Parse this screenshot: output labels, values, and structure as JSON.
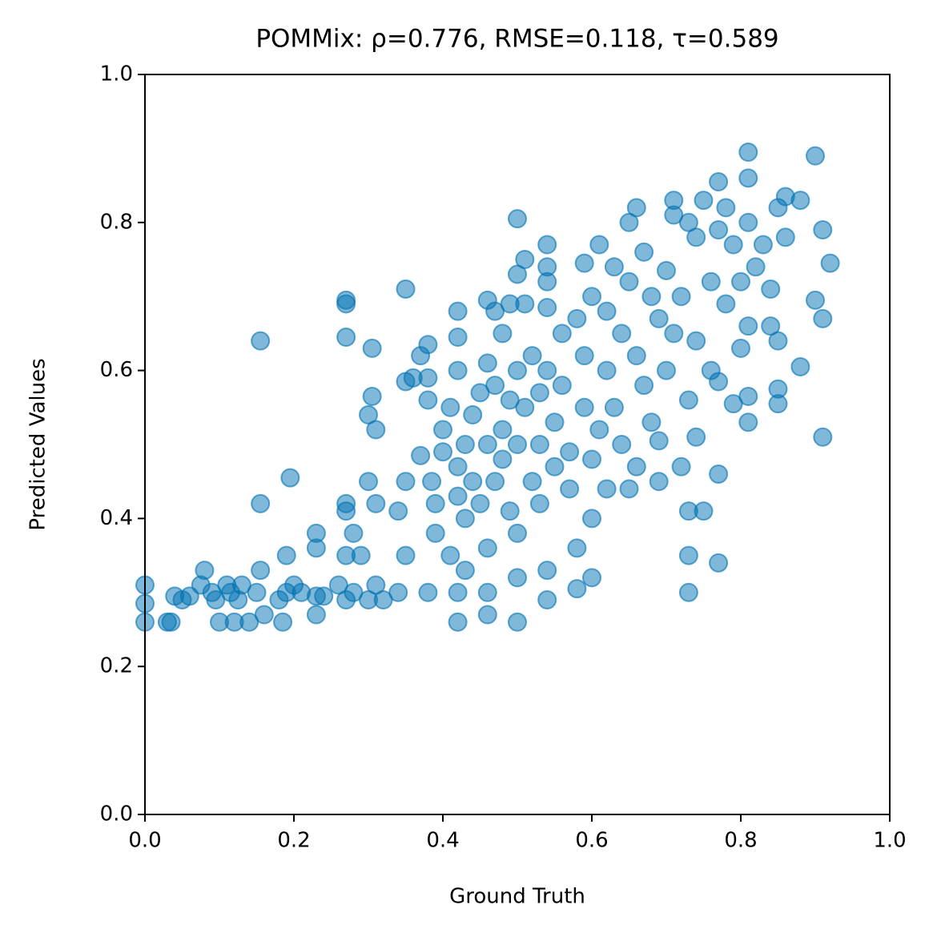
{
  "chart_data": {
    "type": "scatter",
    "title": "POMMix: ρ=0.776, RMSE=0.118, τ=0.589",
    "x_label": "Ground Truth",
    "y_label": "Predicted Values",
    "xlim": [
      0,
      1
    ],
    "ylim": [
      0,
      1
    ],
    "xticks": [
      {
        "value": 0,
        "label": "0.0"
      },
      0.2,
      0.4,
      0.6,
      0.8,
      {
        "value": 1,
        "label": "1.0"
      }
    ],
    "yticks": [
      {
        "value": 0,
        "label": "0.0"
      },
      0.2,
      0.4,
      0.6,
      0.8,
      {
        "value": 1,
        "label": "1.0"
      }
    ],
    "color": "#0072b2",
    "x": [
      0.0,
      0.0,
      0.0,
      0.03,
      0.035,
      0.04,
      0.05,
      0.06,
      0.075,
      0.08,
      0.09,
      0.095,
      0.1,
      0.11,
      0.115,
      0.12,
      0.125,
      0.13,
      0.14,
      0.15,
      0.155,
      0.16,
      0.18,
      0.185,
      0.19,
      0.2,
      0.21,
      0.23,
      0.23,
      0.24,
      0.26,
      0.27,
      0.28,
      0.3,
      0.31,
      0.32,
      0.155,
      0.155,
      0.19,
      0.195,
      0.23,
      0.23,
      0.27,
      0.27,
      0.27,
      0.27,
      0.27,
      0.27,
      0.28,
      0.3,
      0.305,
      0.305,
      0.31,
      0.3,
      0.31,
      0.29,
      0.35,
      0.35,
      0.36,
      0.34,
      0.35,
      0.35,
      0.34,
      0.37,
      0.37,
      0.38,
      0.38,
      0.38,
      0.38,
      0.385,
      0.39,
      0.39,
      0.4,
      0.4,
      0.41,
      0.41,
      0.42,
      0.42,
      0.42,
      0.42,
      0.42,
      0.42,
      0.42,
      0.43,
      0.43,
      0.43,
      0.44,
      0.44,
      0.45,
      0.45,
      0.46,
      0.46,
      0.46,
      0.46,
      0.46,
      0.46,
      0.47,
      0.47,
      0.47,
      0.48,
      0.48,
      0.48,
      0.49,
      0.49,
      0.49,
      0.5,
      0.5,
      0.5,
      0.5,
      0.5,
      0.5,
      0.5,
      0.51,
      0.51,
      0.51,
      0.52,
      0.52,
      0.53,
      0.53,
      0.53,
      0.54,
      0.54,
      0.54,
      0.54,
      0.54,
      0.54,
      0.54,
      0.55,
      0.55,
      0.56,
      0.56,
      0.57,
      0.57,
      0.58,
      0.58,
      0.58,
      0.59,
      0.59,
      0.59,
      0.6,
      0.6,
      0.6,
      0.6,
      0.61,
      0.61,
      0.62,
      0.62,
      0.62,
      0.63,
      0.63,
      0.64,
      0.64,
      0.65,
      0.65,
      0.65,
      0.66,
      0.66,
      0.66,
      0.67,
      0.67,
      0.68,
      0.68,
      0.69,
      0.69,
      0.69,
      0.7,
      0.7,
      0.71,
      0.71,
      0.71,
      0.72,
      0.72,
      0.73,
      0.73,
      0.73,
      0.73,
      0.73,
      0.74,
      0.74,
      0.74,
      0.75,
      0.75,
      0.76,
      0.76,
      0.77,
      0.77,
      0.77,
      0.77,
      0.77,
      0.78,
      0.78,
      0.79,
      0.79,
      0.8,
      0.8,
      0.81,
      0.81,
      0.81,
      0.81,
      0.81,
      0.81,
      0.82,
      0.83,
      0.84,
      0.84,
      0.85,
      0.85,
      0.85,
      0.85,
      0.86,
      0.86,
      0.88,
      0.88,
      0.9,
      0.9,
      0.91,
      0.91,
      0.91,
      0.92
    ],
    "y": [
      0.31,
      0.285,
      0.26,
      0.26,
      0.26,
      0.295,
      0.29,
      0.295,
      0.31,
      0.33,
      0.3,
      0.29,
      0.26,
      0.31,
      0.3,
      0.26,
      0.29,
      0.31,
      0.26,
      0.3,
      0.33,
      0.27,
      0.29,
      0.26,
      0.3,
      0.31,
      0.3,
      0.27,
      0.295,
      0.295,
      0.31,
      0.29,
      0.3,
      0.29,
      0.31,
      0.29,
      0.64,
      0.42,
      0.35,
      0.455,
      0.38,
      0.36,
      0.69,
      0.695,
      0.645,
      0.42,
      0.41,
      0.35,
      0.38,
      0.54,
      0.63,
      0.565,
      0.52,
      0.45,
      0.42,
      0.35,
      0.71,
      0.585,
      0.59,
      0.41,
      0.35,
      0.45,
      0.3,
      0.485,
      0.62,
      0.635,
      0.59,
      0.56,
      0.3,
      0.45,
      0.38,
      0.42,
      0.49,
      0.52,
      0.55,
      0.35,
      0.68,
      0.645,
      0.6,
      0.47,
      0.43,
      0.26,
      0.3,
      0.5,
      0.4,
      0.33,
      0.45,
      0.54,
      0.57,
      0.42,
      0.695,
      0.61,
      0.5,
      0.36,
      0.27,
      0.3,
      0.68,
      0.58,
      0.45,
      0.65,
      0.52,
      0.48,
      0.69,
      0.56,
      0.41,
      0.805,
      0.73,
      0.6,
      0.5,
      0.38,
      0.32,
      0.26,
      0.75,
      0.69,
      0.55,
      0.45,
      0.62,
      0.57,
      0.5,
      0.42,
      0.77,
      0.74,
      0.72,
      0.685,
      0.6,
      0.33,
      0.29,
      0.53,
      0.47,
      0.65,
      0.58,
      0.49,
      0.44,
      0.67,
      0.36,
      0.305,
      0.745,
      0.62,
      0.55,
      0.7,
      0.48,
      0.4,
      0.32,
      0.77,
      0.52,
      0.68,
      0.6,
      0.44,
      0.74,
      0.55,
      0.65,
      0.5,
      0.8,
      0.72,
      0.44,
      0.82,
      0.62,
      0.47,
      0.76,
      0.58,
      0.7,
      0.53,
      0.67,
      0.45,
      0.505,
      0.735,
      0.6,
      0.83,
      0.81,
      0.65,
      0.7,
      0.47,
      0.8,
      0.56,
      0.41,
      0.35,
      0.3,
      0.78,
      0.64,
      0.51,
      0.83,
      0.41,
      0.72,
      0.6,
      0.855,
      0.79,
      0.585,
      0.46,
      0.34,
      0.82,
      0.69,
      0.77,
      0.555,
      0.72,
      0.63,
      0.895,
      0.86,
      0.8,
      0.66,
      0.565,
      0.53,
      0.74,
      0.77,
      0.66,
      0.71,
      0.82,
      0.64,
      0.575,
      0.555,
      0.835,
      0.78,
      0.83,
      0.605,
      0.89,
      0.695,
      0.79,
      0.67,
      0.51,
      0.745
    ]
  }
}
